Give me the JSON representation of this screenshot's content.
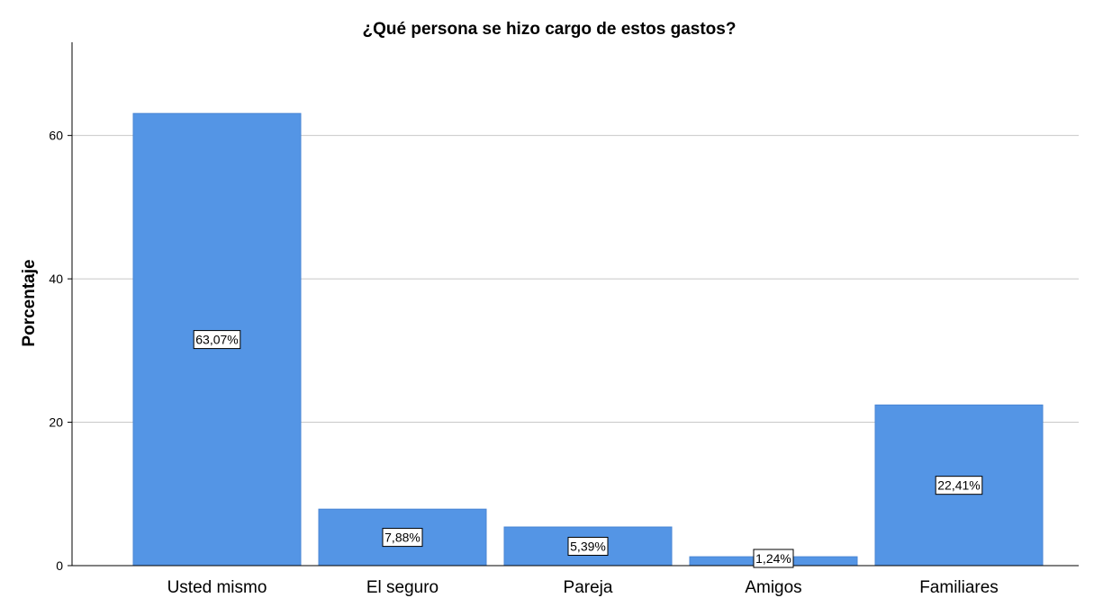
{
  "chart_data": {
    "type": "bar",
    "title": "¿Qué persona se hizo cargo de estos gastos?",
    "xlabel": "",
    "ylabel": "Porcentaje",
    "categories": [
      "Usted mismo",
      "El seguro",
      "Pareja",
      "Amigos",
      "Familiares"
    ],
    "values": [
      63.07,
      7.88,
      5.39,
      1.24,
      22.41
    ],
    "data_labels": [
      "63,07%",
      "7,88%",
      "5,39%",
      "1,24%",
      "22,41%"
    ],
    "yticks": [
      "0",
      "20",
      "40",
      "60"
    ],
    "ylim": [
      0,
      73
    ],
    "grid": true,
    "legend": "none",
    "bar_color": "#5495e5"
  }
}
